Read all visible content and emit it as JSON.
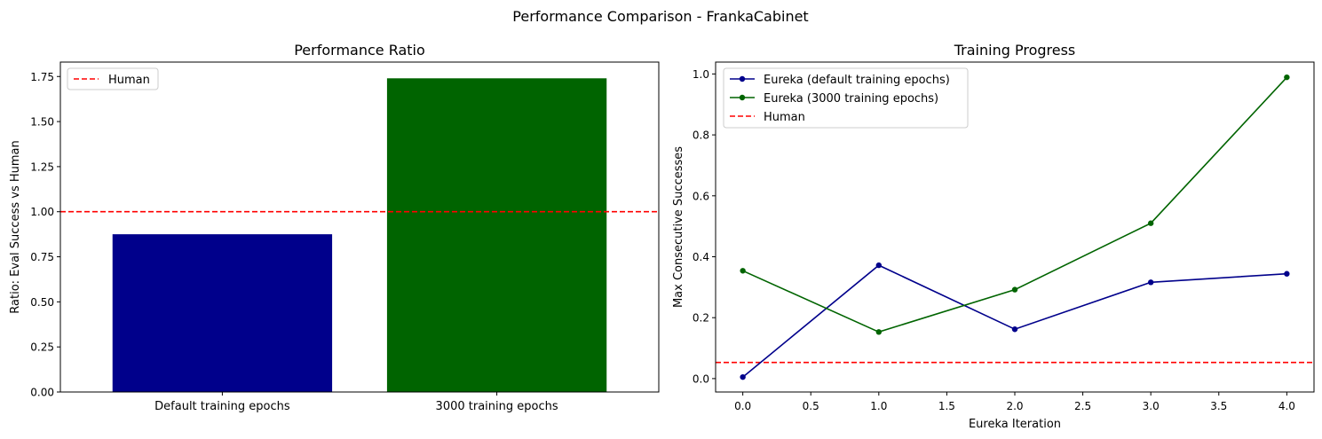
{
  "suptitle": "Performance Comparison - FrankaCabinet",
  "chart_data": [
    {
      "type": "bar",
      "title": "Performance Ratio",
      "xlabel": "",
      "ylabel": "Ratio: Eval Success vs Human",
      "categories": [
        "Default training epochs",
        "3000 training epochs"
      ],
      "values": [
        0.875,
        1.74
      ],
      "colors": [
        "#00008b",
        "#006400"
      ],
      "ylim": [
        0,
        1.83
      ],
      "yticks": [
        0.0,
        0.25,
        0.5,
        0.75,
        1.0,
        1.25,
        1.5,
        1.75
      ],
      "ytick_labels": [
        "0.00",
        "0.25",
        "0.50",
        "0.75",
        "1.00",
        "1.25",
        "1.50",
        "1.75"
      ],
      "reference_line": {
        "name": "Human",
        "value": 1.0,
        "color": "#ff0000",
        "style": "dashed"
      },
      "legend": {
        "position": "top-left",
        "entries": [
          "Human"
        ]
      },
      "grid": false
    },
    {
      "type": "line",
      "title": "Training Progress",
      "xlabel": "Eureka Iteration",
      "ylabel": "Max Consecutive Successes",
      "x": [
        0,
        1,
        2,
        3,
        4
      ],
      "series": [
        {
          "name": "Eureka (default training epochs)",
          "values": [
            0.005,
            0.372,
            0.162,
            0.316,
            0.344
          ],
          "color": "#00008b"
        },
        {
          "name": "Eureka (3000 training epochs)",
          "values": [
            0.354,
            0.153,
            0.292,
            0.51,
            0.989
          ],
          "color": "#006400"
        }
      ],
      "reference_line": {
        "name": "Human",
        "value": 0.053,
        "color": "#ff0000",
        "style": "dashed"
      },
      "xlim": [
        -0.2,
        4.2
      ],
      "ylim": [
        -0.044,
        1.039
      ],
      "xticks": [
        0.0,
        0.5,
        1.0,
        1.5,
        2.0,
        2.5,
        3.0,
        3.5,
        4.0
      ],
      "xtick_labels": [
        "0.0",
        "0.5",
        "1.0",
        "1.5",
        "2.0",
        "2.5",
        "3.0",
        "3.5",
        "4.0"
      ],
      "yticks": [
        0.0,
        0.2,
        0.4,
        0.6,
        0.8,
        1.0
      ],
      "ytick_labels": [
        "0.0",
        "0.2",
        "0.4",
        "0.6",
        "0.8",
        "1.0"
      ],
      "legend": {
        "position": "top-left",
        "entries": [
          "Eureka (default training epochs)",
          "Eureka (3000 training epochs)",
          "Human"
        ]
      },
      "grid": false
    }
  ]
}
